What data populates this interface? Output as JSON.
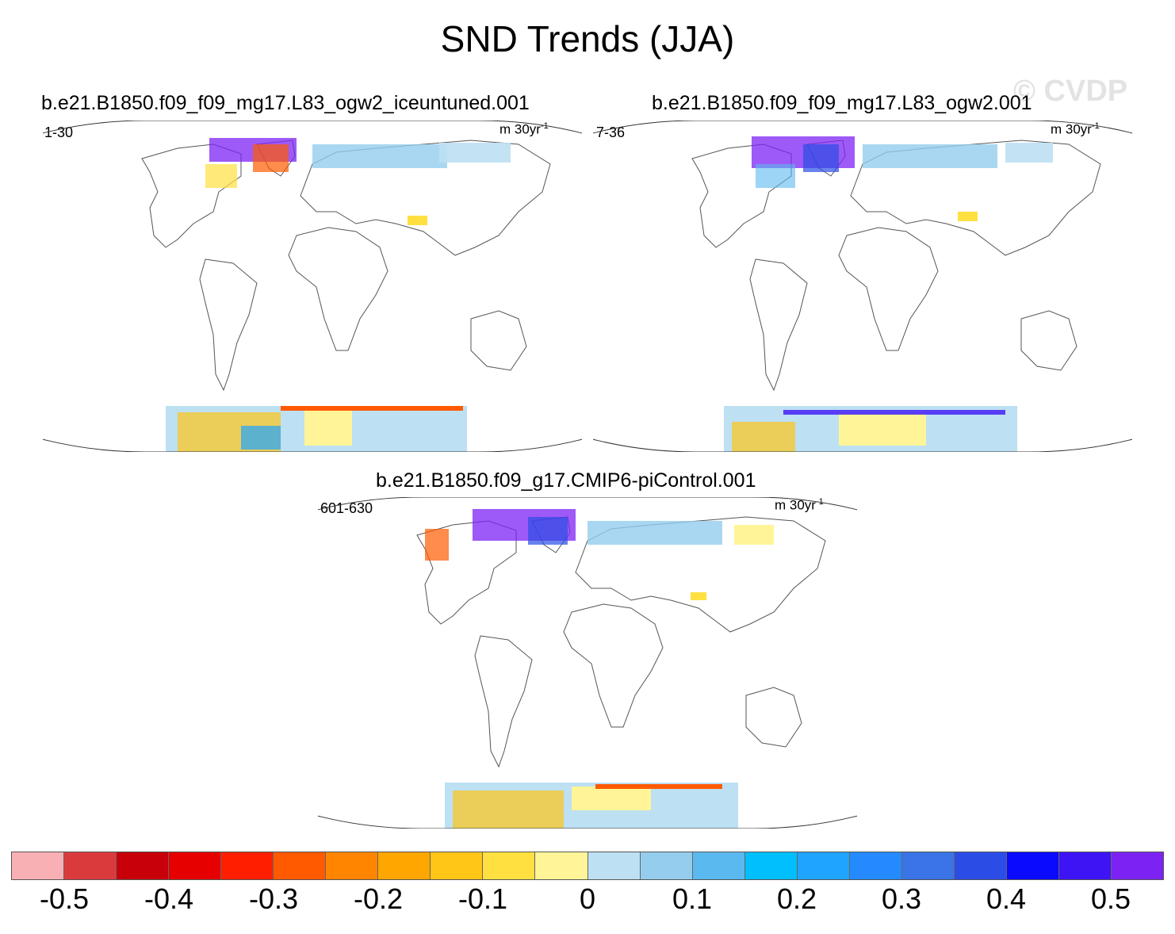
{
  "title": "SND Trends (JJA)",
  "watermark": "© CVDP",
  "panels": [
    {
      "title": "b.e21.B1850.f09_f09_mg17.L83_ogw2_iceuntuned.001",
      "years": "1-30",
      "units_base": "m 30yr",
      "units_exp": "-1"
    },
    {
      "title": "b.e21.B1850.f09_f09_mg17.L83_ogw2.001",
      "years": "7-36",
      "units_base": "m 30yr",
      "units_exp": "-1"
    },
    {
      "title": "b.e21.B1850.f09_g17.CMIP6-piControl.001",
      "years": "601-630",
      "units_base": "m 30yr",
      "units_exp": "-1"
    }
  ],
  "colorbar": {
    "colors": [
      "#f9b0b5",
      "#db3a3d",
      "#c8000a",
      "#e60000",
      "#ff1f00",
      "#ff5a00",
      "#ff8500",
      "#ffa600",
      "#ffc517",
      "#ffe040",
      "#fff598",
      "#bde0f3",
      "#94cded",
      "#5ab9ef",
      "#00bffc",
      "#1fa5ff",
      "#258aff",
      "#3a74e6",
      "#2b4de6",
      "#0a0aff",
      "#3e14f5",
      "#7c23f3"
    ],
    "labels": [
      "-0.5",
      "-0.4",
      "-0.3",
      "-0.2",
      "-0.1",
      "0",
      "0.1",
      "0.2",
      "0.3",
      "0.4",
      "0.5"
    ]
  }
}
